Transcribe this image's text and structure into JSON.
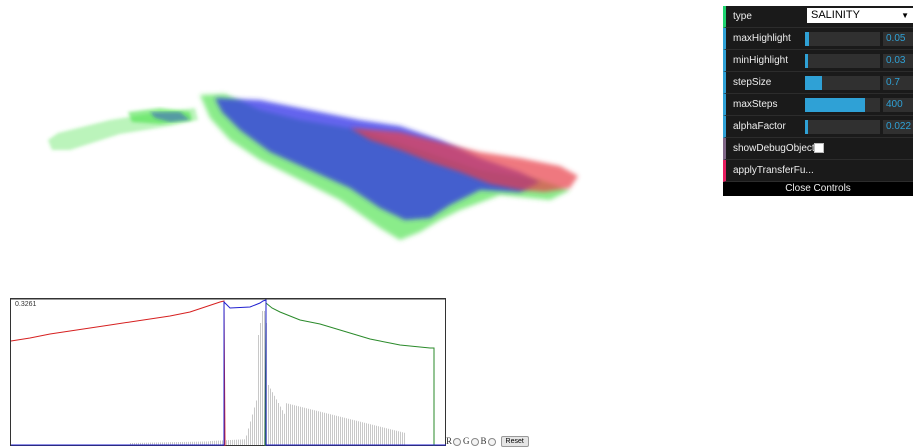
{
  "controls": {
    "type": {
      "label": "type",
      "value": "SALINITY"
    },
    "maxHighlight": {
      "label": "maxHighlight",
      "value": "0.05",
      "level": 0.05
    },
    "minHighlight": {
      "label": "minHighlight",
      "value": "0.03",
      "level": 0.03
    },
    "stepSize": {
      "label": "stepSize",
      "value": "0.7",
      "level": 0.22
    },
    "maxSteps": {
      "label": "maxSteps",
      "value": "400",
      "level": 0.8
    },
    "alphaFactor": {
      "label": "alphaFactor",
      "value": "0.022",
      "level": 0.02
    },
    "showDebugObject": {
      "label": "showDebugObject",
      "checked": false
    },
    "applyTransferFunction": {
      "label": "applyTransferFu..."
    },
    "close_label": "Close Controls"
  },
  "transfer_function": {
    "max_label": "0.3261",
    "channel_labels": [
      "R",
      "G",
      "B"
    ],
    "reset_label": "Reset",
    "colors": {
      "r": "#d62020",
      "g": "#2a8a2a",
      "b": "#2020d0",
      "hist": "#c8c8c8"
    }
  },
  "volume_colors": {
    "red": "#e8404a",
    "green": "#3ae03a",
    "blue": "#2a2ae8"
  }
}
